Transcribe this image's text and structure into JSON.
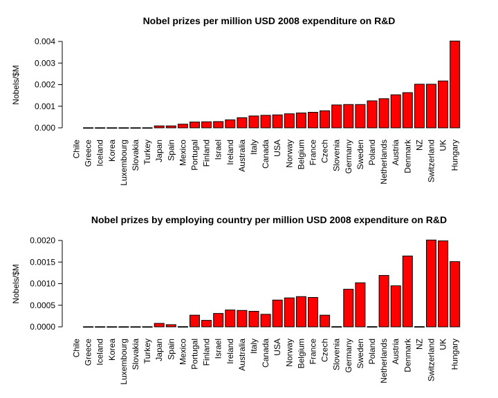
{
  "chart_data": [
    {
      "type": "bar",
      "title": "Nobel prizes per million USD 2008 expenditure on R&D",
      "xlabel": "",
      "ylabel": "Nobels/$M",
      "ylim": [
        0,
        0.004
      ],
      "yticks": [
        "0.000",
        "0.001",
        "0.002",
        "0.003",
        "0.004"
      ],
      "bar_color": "#ff0000",
      "categories": [
        "Chile",
        "Greece",
        "Iceland",
        "Korea",
        "Luxembourg",
        "Slovakia",
        "Turkey",
        "Japan",
        "Spain",
        "Mexico",
        "Portugal",
        "Finland",
        "Israel",
        "Ireland",
        "Australia",
        "Italy",
        "Canada",
        "USA",
        "Norway",
        "Belgium",
        "France",
        "Czech",
        "Slovenia",
        "Germany",
        "Sweden",
        "Poland",
        "Netherlands",
        "Austria",
        "Denmark",
        "NZ",
        "Switzerland",
        "UK",
        "Hungary"
      ],
      "values": [
        0,
        5e-06,
        5e-06,
        5e-06,
        5e-06,
        5e-06,
        5e-06,
        9e-05,
        9e-05,
        0.00017,
        0.00027,
        0.00028,
        0.00029,
        0.00037,
        0.00047,
        0.00055,
        0.00058,
        0.0006,
        0.00065,
        0.00069,
        0.00072,
        0.00079,
        0.00106,
        0.00108,
        0.00108,
        0.00125,
        0.00135,
        0.00153,
        0.00163,
        0.00202,
        0.00202,
        0.00217,
        0.00402
      ]
    },
    {
      "type": "bar",
      "title": "Nobel prizes by employing country per million USD 2008 expenditure on R&D",
      "xlabel": "",
      "ylabel": "Nobels/$M",
      "ylim": [
        0,
        0.002
      ],
      "yticks": [
        "0.0000",
        "0.0005",
        "0.0010",
        "0.0015",
        "0.0020"
      ],
      "bar_color": "#ff0000",
      "categories": [
        "Chile",
        "Greece",
        "Iceland",
        "Korea",
        "Luxembourg",
        "Slovakia",
        "Turkey",
        "Japan",
        "Spain",
        "Mexico",
        "Portugal",
        "Finland",
        "Israel",
        "Ireland",
        "Australia",
        "Italy",
        "Canada",
        "USA",
        "Norway",
        "Belgium",
        "France",
        "Czech",
        "Slovenia",
        "Germany",
        "Sweden",
        "Poland",
        "Netherlands",
        "Austria",
        "Denmark",
        "NZ",
        "Switzerland",
        "UK",
        "Hungary"
      ],
      "values": [
        0,
        3e-06,
        3e-06,
        3e-06,
        3e-06,
        3e-06,
        3e-06,
        8e-05,
        5e-05,
        5e-06,
        0.00027,
        0.00015,
        0.00031,
        0.00039,
        0.00038,
        0.00036,
        0.00029,
        0.00062,
        0.00067,
        0.0007,
        0.00068,
        0.00027,
        5e-06,
        0.00087,
        0.00102,
        5e-06,
        0.00119,
        0.00095,
        0.00164,
        5e-06,
        0.00201,
        0.00199,
        0.00151
      ]
    }
  ]
}
